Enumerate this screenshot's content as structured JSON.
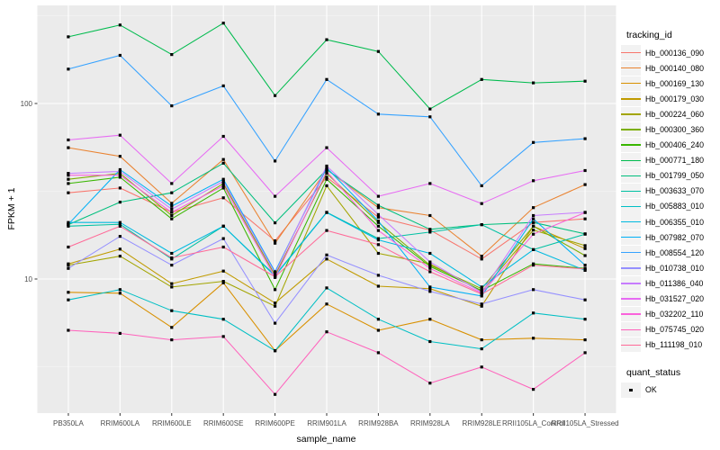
{
  "chart_data": {
    "type": "line",
    "xlabel": "sample_name",
    "ylabel": "FPKM + 1",
    "y_scale": "log10",
    "y_ticks": [
      10,
      100
    ],
    "y_minor_ticks": [
      3.16,
      31.6,
      316
    ],
    "ylim_approx": [
      1.7,
      360
    ],
    "grid": true,
    "panel_bg": "#EBEBEB",
    "grid_color": "#FFFFFF",
    "point_marker": "black-square",
    "categories": [
      "PB350LA",
      "RRIM600LA",
      "RRIM600LE",
      "RRIM600SE",
      "RRIM600PE",
      "RRIM901LA",
      "RRIM928BA",
      "RRIM928LA",
      "RRIM928LE",
      "RRII105LA_Control",
      "RRII105LA_Stressed"
    ],
    "series": [
      {
        "name": "Hb_000136_090",
        "color": "#F8766D",
        "values": [
          31,
          33,
          24,
          29,
          16.5,
          38,
          22.5,
          19,
          13,
          21,
          22
        ]
      },
      {
        "name": "Hb_000140_080",
        "color": "#EA8331",
        "values": [
          56,
          50,
          27,
          48,
          16,
          42,
          25.5,
          23,
          13.5,
          25.5,
          34.5
        ]
      },
      {
        "name": "Hb_000169_130",
        "color": "#D89000",
        "values": [
          8.4,
          8.3,
          5.3,
          9.5,
          3.9,
          7.2,
          5.1,
          5.9,
          4.5,
          4.6,
          4.5
        ]
      },
      {
        "name": "Hb_000179_030",
        "color": "#C09B00",
        "values": [
          12.2,
          14.8,
          9.4,
          11.1,
          7.3,
          13,
          9.1,
          8.8,
          7,
          20,
          14.9
        ]
      },
      {
        "name": "Hb_000224_060",
        "color": "#A3A500",
        "values": [
          12,
          13.5,
          9,
          9.7,
          7,
          34,
          14,
          12.2,
          8.5,
          19,
          15.5
        ]
      },
      {
        "name": "Hb_000300_360",
        "color": "#7CAE00",
        "values": [
          37,
          40,
          23,
          35,
          10.5,
          40,
          21,
          12,
          8.8,
          20,
          13.6
        ]
      },
      {
        "name": "Hb_000406_240",
        "color": "#39B600",
        "values": [
          35,
          38,
          22,
          33,
          8.7,
          37,
          20,
          11.8,
          8.6,
          12.2,
          11.5
        ]
      },
      {
        "name": "Hb_000771_180",
        "color": "#00BB4E",
        "values": [
          240,
          280,
          190,
          287,
          111,
          231,
          198,
          93,
          137,
          131,
          134
        ]
      },
      {
        "name": "Hb_001799_050",
        "color": "#00BF7D",
        "values": [
          20.4,
          27.4,
          31,
          45.7,
          20.9,
          42,
          26.3,
          19.2,
          20.4,
          21,
          18.1
        ]
      },
      {
        "name": "Hb_003633_070",
        "color": "#00C1A3",
        "values": [
          20,
          20.5,
          13,
          20,
          10.5,
          24,
          17,
          18.5,
          20.4,
          14.7,
          18
        ]
      },
      {
        "name": "Hb_005883_010",
        "color": "#00BFC4",
        "values": [
          7.6,
          8.7,
          6.6,
          5.9,
          3.9,
          8.9,
          5.9,
          4.4,
          4,
          6.4,
          5.9
        ]
      },
      {
        "name": "Hb_006355_010",
        "color": "#00BAE0",
        "values": [
          21,
          21,
          14,
          20,
          10.4,
          23.9,
          16.7,
          14,
          9,
          14.7,
          11.2
        ]
      },
      {
        "name": "Hb_007982_070",
        "color": "#00B0F6",
        "values": [
          20.5,
          42,
          26,
          37,
          11,
          43,
          21.4,
          9,
          8,
          22,
          12
        ]
      },
      {
        "name": "Hb_008554_120",
        "color": "#35A2FF",
        "values": [
          157,
          188,
          97,
          126,
          47,
          137,
          87,
          84,
          34,
          60,
          63
        ]
      },
      {
        "name": "Hb_010738_010",
        "color": "#9590FF",
        "values": [
          11.5,
          17.5,
          12,
          17,
          5.6,
          13.7,
          10.5,
          8.5,
          7.2,
          8.7,
          7.6
        ]
      },
      {
        "name": "Hb_011386_040",
        "color": "#C77CFF",
        "values": [
          40,
          41,
          25,
          36,
          10.8,
          44,
          23.3,
          12.5,
          8.4,
          23,
          24
        ]
      },
      {
        "name": "Hb_031527_020",
        "color": "#E76BF3",
        "values": [
          62,
          66,
          35,
          65,
          29.6,
          56,
          29.6,
          35,
          26.9,
          36.3,
          41.5
        ]
      },
      {
        "name": "Hb_032202_110",
        "color": "#FA62DB",
        "values": [
          39,
          39,
          24,
          34,
          10.2,
          41,
          18.9,
          11.5,
          8.3,
          18,
          23.9
        ]
      },
      {
        "name": "Hb_075745_020",
        "color": "#FF62BC",
        "values": [
          5.1,
          4.9,
          4.5,
          4.7,
          2.2,
          5,
          3.8,
          2.55,
          3.15,
          2.35,
          3.8
        ]
      },
      {
        "name": "Hb_111198_010",
        "color": "#FF6A98",
        "values": [
          15.2,
          20,
          13.2,
          15.2,
          10.3,
          18.9,
          15.7,
          11,
          8.2,
          12,
          11.4
        ]
      }
    ],
    "legend": {
      "tracking_title": "tracking_id",
      "quant_title": "quant_status",
      "quant_items": [
        {
          "label": "OK",
          "marker": "black-square"
        }
      ]
    }
  }
}
